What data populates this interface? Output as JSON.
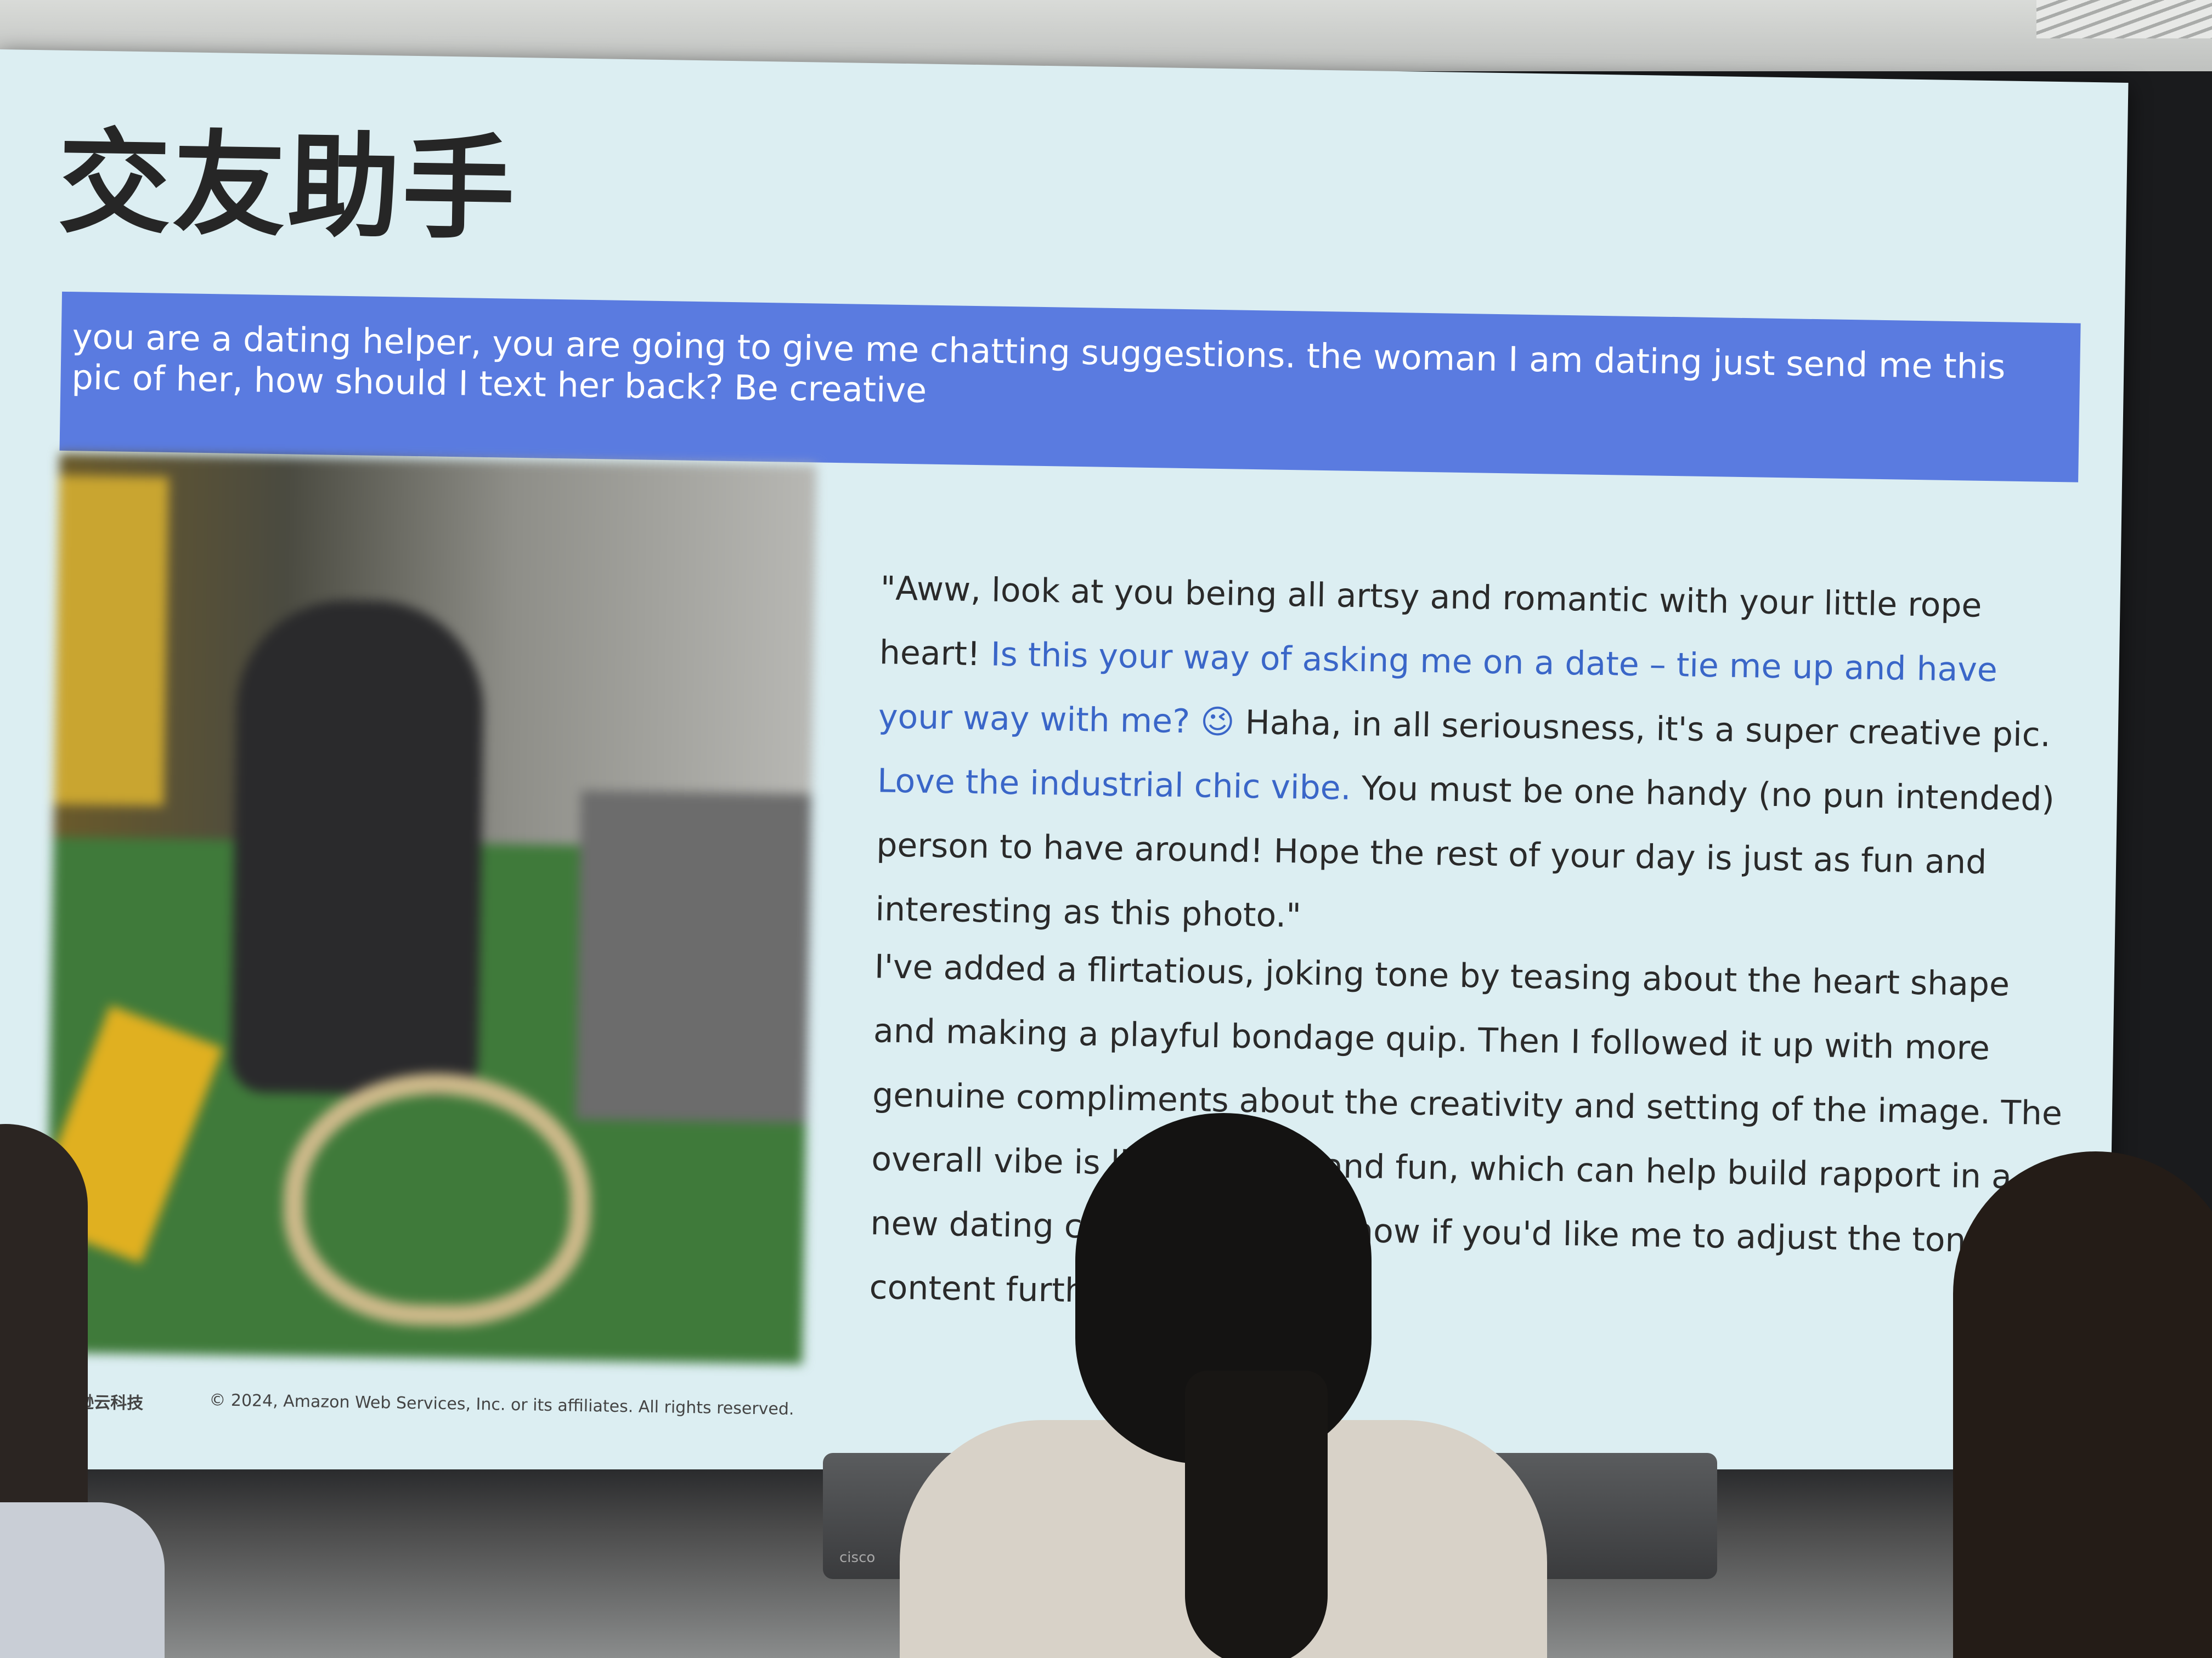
{
  "slide": {
    "title": "交友助手",
    "prompt": "you are a dating helper, you are going to give me chatting suggestions. the woman I am dating just send me this pic of her, how should I text her back? Be creative",
    "reply": {
      "segment_1": "\"Aww, look at you being all artsy and romantic with your little rope heart! ",
      "segment_2_highlight": "Is this your way of asking me on a date – tie me up and have your way with me? 😉",
      "segment_3": " Haha, in all seriousness, it's a super creative pic. ",
      "segment_4_highlight": "Love the industrial chic vibe.",
      "segment_5": " You must be one handy (no pun intended) person to have around! Hope the rest of your day is just as fun and interesting as this photo.\""
    },
    "explanation": "I've added a flirtatious, joking tone by teasing about the heart shape and making a playful bondage quip. Then I followed it up with more genuine compliments about the creativity and setting of the image. The overall vibe is lighthearted and fun, which can help build rapport in a new dating context. Let me know if you'd like me to adjust the tone or content further.",
    "footer_logo": "亚马逊云科技",
    "footer_copyright": "© 2024, Amazon Web Services, Inc. or its affiliates. All rights reserved."
  },
  "room": {
    "speaker_brand": "cisco"
  },
  "colors": {
    "slide_background": "#dceef2",
    "prompt_bar": "#5a7be0",
    "highlight_text": "#3a66c8",
    "body_text": "#2a2a2a"
  }
}
